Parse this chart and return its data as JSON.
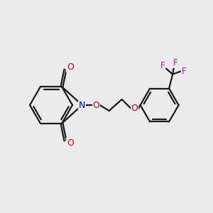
{
  "bg_color": "#ebebeb",
  "bond_color": "#1a1a1a",
  "n_color": "#0000cc",
  "o_color": "#cc0000",
  "f_color": "#cc00cc",
  "line_width": 1.6,
  "figsize": [
    3.0,
    3.0
  ],
  "dpi": 100,
  "xlim": [
    0,
    300
  ],
  "ylim": [
    0,
    300
  ]
}
